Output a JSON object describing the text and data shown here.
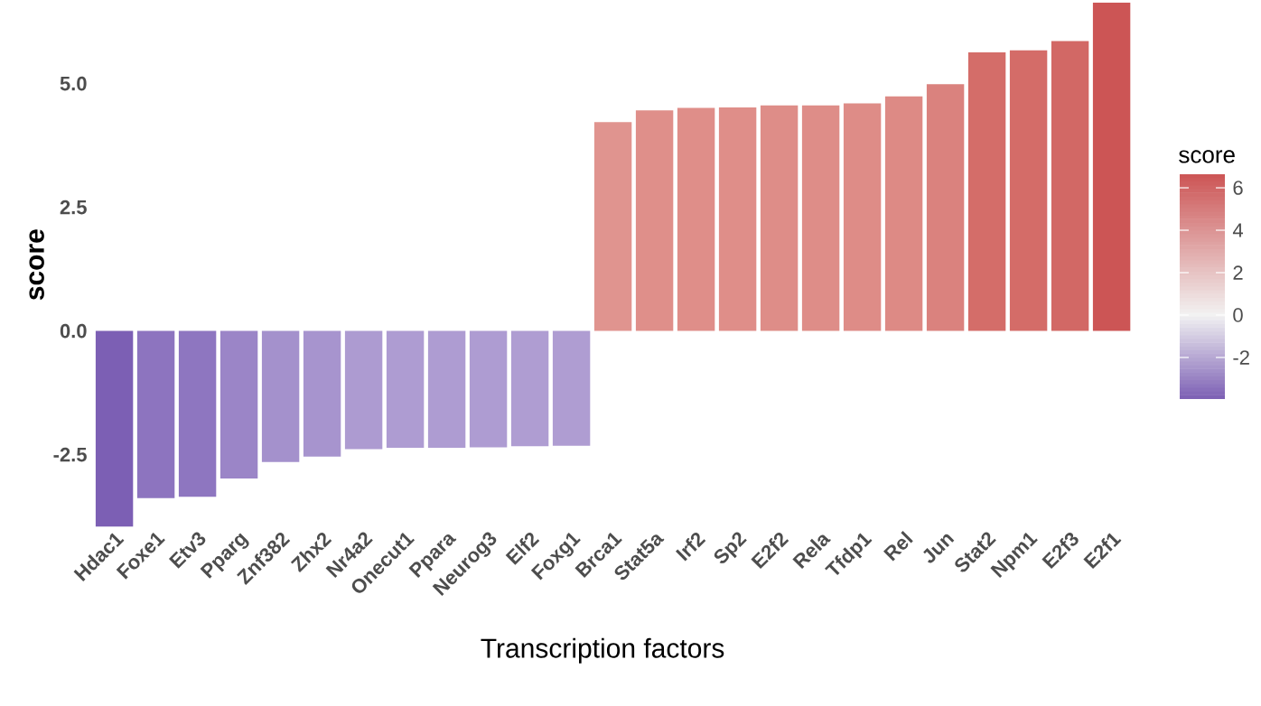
{
  "chart_data": {
    "type": "bar",
    "xlabel": "Transcription factors",
    "ylabel": "score",
    "clabel": "score",
    "categories": [
      "Hdac1",
      "Foxe1",
      "Etv3",
      "Pparg",
      "Znf382",
      "Zhx2",
      "Nr4a2",
      "Onecut1",
      "Ppara",
      "Neurog3",
      "Elf2",
      "Foxg1",
      "Brca1",
      "Stat5a",
      "Irf2",
      "Sp2",
      "E2f2",
      "Rela",
      "Tfdp1",
      "Rel",
      "Jun",
      "Stat2",
      "Npm1",
      "E2f3",
      "E2f1"
    ],
    "values": [
      -3.96,
      -3.38,
      -3.35,
      -2.98,
      -2.65,
      -2.54,
      -2.39,
      -2.36,
      -2.36,
      -2.35,
      -2.33,
      -2.32,
      4.22,
      4.46,
      4.51,
      4.52,
      4.56,
      4.56,
      4.6,
      4.74,
      4.99,
      5.63,
      5.67,
      5.86,
      6.64
    ],
    "colors": [
      "#7c5fb4",
      "#8d74bf",
      "#8e76c0",
      "#9b85c7",
      "#a491cc",
      "#a794ce",
      "#ad9bd1",
      "#ae9cd2",
      "#ae9cd2",
      "#ae9cd2",
      "#af9dd2",
      "#af9dd2",
      "#e0948f",
      "#df8f8a",
      "#df8e89",
      "#df8e89",
      "#de8d88",
      "#de8d88",
      "#de8c87",
      "#dd8a85",
      "#da827e",
      "#d46d69",
      "#d46c68",
      "#d26865",
      "#cc5555"
    ],
    "ylim": [
      -3.96,
      6.64
    ],
    "yticks": [
      -2.5,
      {
        "value": 0,
        "label": "0.0"
      },
      2.5,
      {
        "value": 5,
        "label": "5.0"
      }
    ],
    "clim": [
      -3.96,
      6.64
    ],
    "cticks": [
      -2,
      0,
      2,
      4,
      6
    ],
    "grid": false
  }
}
